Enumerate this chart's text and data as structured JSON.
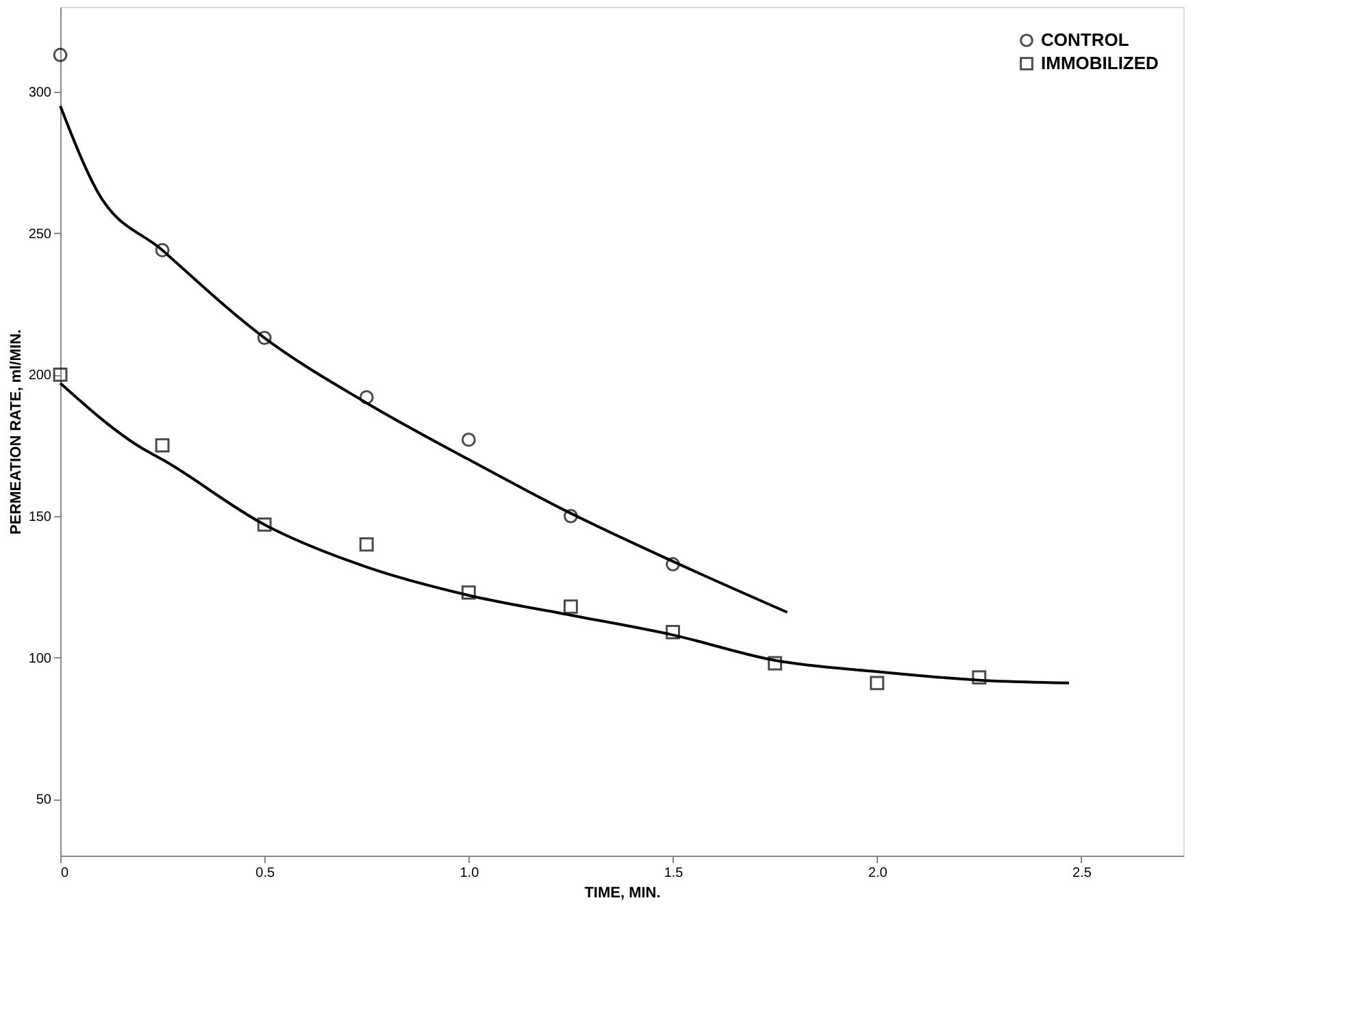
{
  "chart_data": {
    "type": "scatter",
    "xlabel": "TIME, MIN.",
    "ylabel": "PERMEATION RATE, ml/MIN.",
    "xlim": [
      0,
      2.75
    ],
    "ylim": [
      30,
      330
    ],
    "xticks": [
      0,
      0.5,
      {
        "value": 1,
        "label": "1.0"
      },
      1.5,
      {
        "value": 2,
        "label": "2.0"
      },
      2.5
    ],
    "yticks": [
      50,
      100,
      150,
      200,
      250,
      300
    ],
    "grid": false,
    "legend": "top right",
    "series": [
      {
        "name": "CONTROL",
        "marker": "circle",
        "color": "#000000",
        "x": [
          0,
          0.25,
          0.5,
          0.75,
          1.0,
          1.25,
          1.5
        ],
        "values": [
          313,
          244,
          213,
          192,
          177,
          150,
          133
        ]
      },
      {
        "name": "IMMOBILIZED",
        "marker": "square",
        "color": "#000000",
        "x": [
          0,
          0.25,
          0.5,
          0.75,
          1.0,
          1.25,
          1.5,
          1.75,
          2.0,
          2.25
        ],
        "values": [
          200,
          175,
          147,
          140,
          123,
          118,
          109,
          98,
          91,
          93
        ]
      },
      {
        "type": "line",
        "marker": "none",
        "line_style": "solid",
        "color": "#000000",
        "x": [
          0,
          0.09,
          0.25,
          0.5,
          0.75,
          1.0,
          1.25,
          1.5,
          1.78
        ],
        "values": [
          295,
          265,
          244,
          213,
          190,
          170,
          151,
          134,
          116
        ]
      },
      {
        "type": "line",
        "marker": "none",
        "line_style": "solid",
        "color": "#000000",
        "x": [
          0,
          0.2,
          0.25,
          0.5,
          0.75,
          1.0,
          1.25,
          1.5,
          1.75,
          2.0,
          2.25,
          2.47
        ],
        "values": [
          197,
          174,
          170,
          147,
          132,
          122,
          115,
          108,
          99,
          95,
          92,
          91
        ]
      }
    ]
  }
}
